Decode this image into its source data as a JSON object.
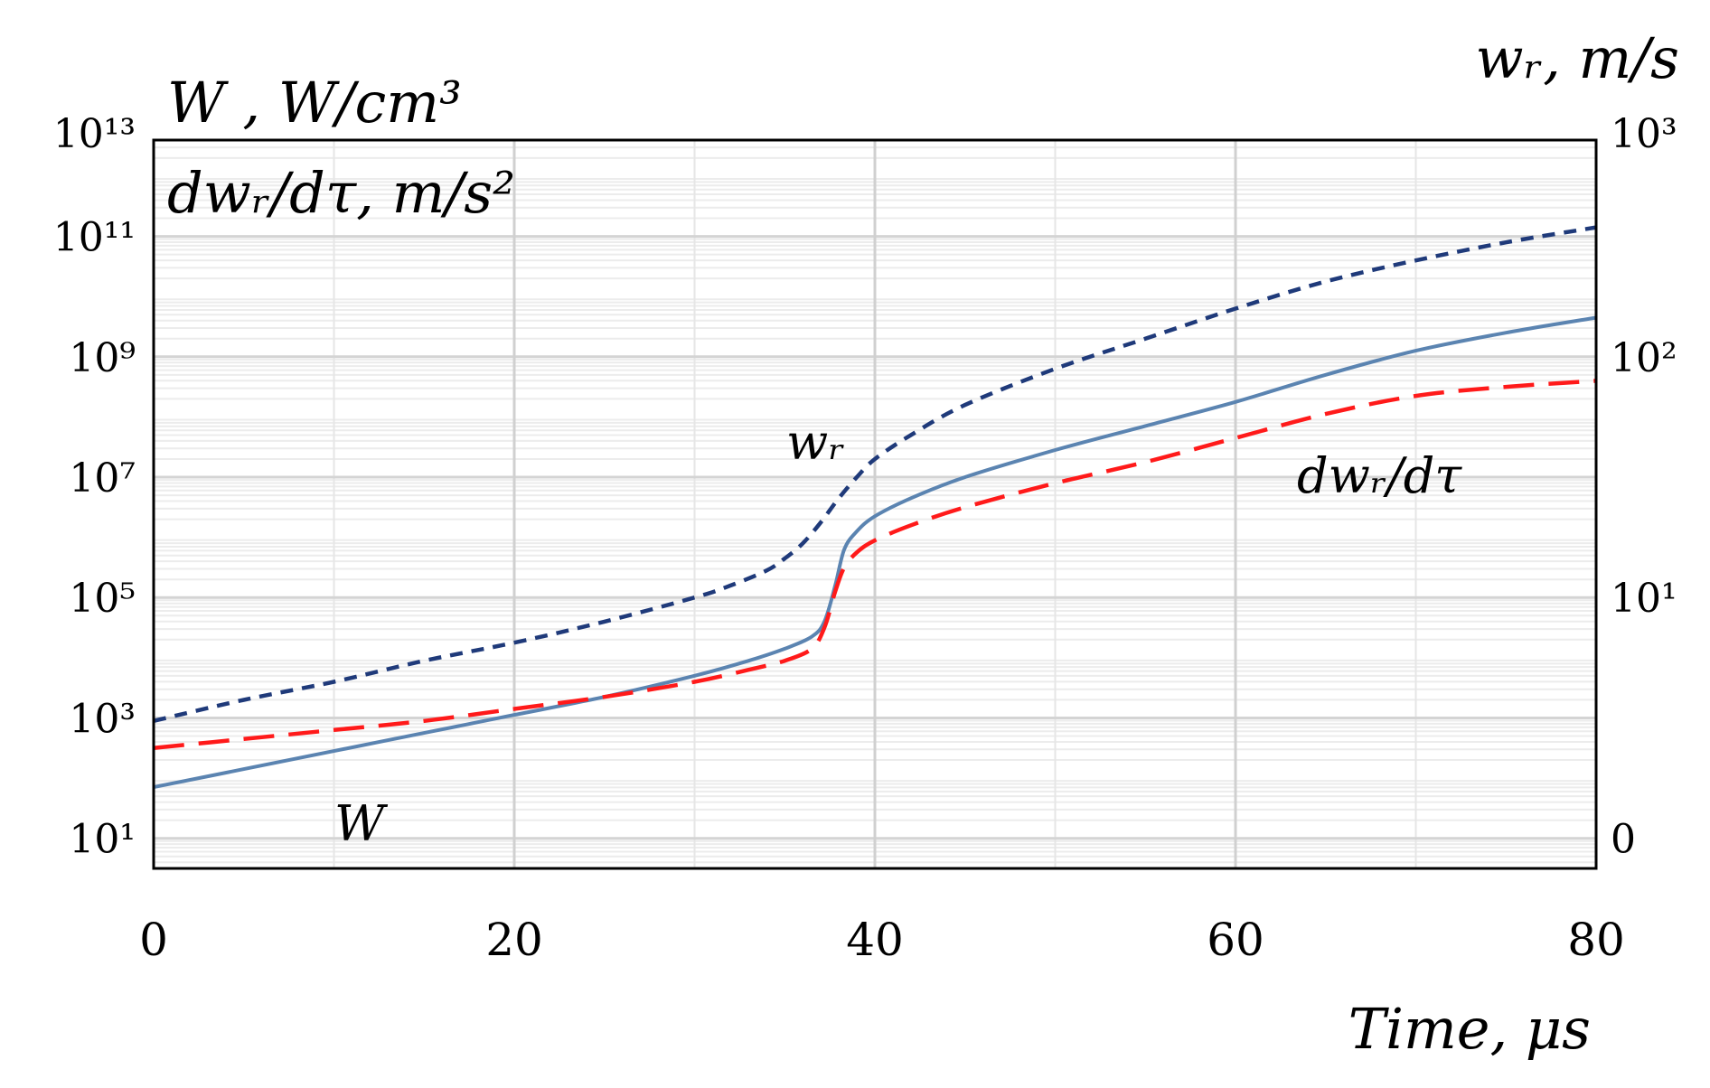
{
  "chart_data": {
    "type": "line",
    "title": "",
    "xlabel": "Time, μs",
    "ylabel_left_line1": "W , W/cm³",
    "ylabel_left_line2": "dwᵣ/dτ, m/s²",
    "ylabel_right": "wᵣ, m/s",
    "xlim": [
      0,
      80
    ],
    "x_ticks": [
      0,
      20,
      40,
      60,
      80
    ],
    "x_tick_labels": [
      "0",
      "20",
      "40",
      "60",
      "80"
    ],
    "ylim_left_log10": [
      0.5,
      12.6
    ],
    "y_left_ticks_log10": [
      1,
      3,
      5,
      7,
      9,
      11,
      13
    ],
    "y_left_tick_labels": [
      "10¹",
      "10³",
      "10⁵",
      "10⁷",
      "10⁹",
      "10¹¹",
      "10¹³"
    ],
    "y_right_tick_labels": [
      "0",
      "10¹",
      "10²",
      "10³"
    ],
    "y_right_ticks_log10_left_equiv": [
      1,
      5,
      9,
      13
    ],
    "grid": true,
    "series": [
      {
        "name": "W",
        "label": "W",
        "color": "#5b84b1",
        "style": "solid",
        "x": [
          0,
          5,
          10,
          15,
          20,
          25,
          30,
          33,
          35,
          36.5,
          37.2,
          37.8,
          38.3,
          39,
          40,
          42,
          45,
          50,
          55,
          60,
          65,
          70,
          75,
          80
        ],
        "log10_y": [
          1.85,
          2.15,
          2.45,
          2.75,
          3.05,
          3.35,
          3.7,
          3.95,
          4.15,
          4.35,
          4.6,
          5.2,
          5.8,
          6.1,
          6.35,
          6.65,
          7.0,
          7.45,
          7.85,
          8.25,
          8.7,
          9.1,
          9.4,
          9.65
        ]
      },
      {
        "name": "dwᵣ/dτ",
        "label": "dwᵣ/dτ",
        "color": "#ff1a1a",
        "style": "long-dash",
        "x": [
          0,
          5,
          10,
          15,
          20,
          25,
          30,
          33,
          35,
          36.5,
          37.2,
          37.8,
          38.3,
          39,
          40,
          42,
          45,
          50,
          55,
          60,
          65,
          70,
          75,
          80
        ],
        "log10_y": [
          2.5,
          2.65,
          2.8,
          2.95,
          3.15,
          3.35,
          3.6,
          3.8,
          3.95,
          4.15,
          4.5,
          5.1,
          5.5,
          5.75,
          5.95,
          6.2,
          6.5,
          6.9,
          7.25,
          7.65,
          8.05,
          8.35,
          8.5,
          8.6
        ]
      },
      {
        "name": "wᵣ",
        "label": "wᵣ",
        "color": "#1f3a7a",
        "style": "short-dash",
        "x": [
          0,
          5,
          10,
          15,
          20,
          25,
          30,
          32,
          34,
          35,
          36,
          37,
          38,
          39,
          40,
          42,
          45,
          50,
          55,
          60,
          65,
          70,
          75,
          80
        ],
        "log10_y": [
          2.95,
          3.3,
          3.6,
          3.95,
          4.25,
          4.6,
          5.0,
          5.2,
          5.45,
          5.65,
          5.9,
          6.25,
          6.65,
          7.0,
          7.3,
          7.7,
          8.2,
          8.8,
          9.3,
          9.8,
          10.25,
          10.6,
          10.9,
          11.15
        ]
      }
    ]
  }
}
